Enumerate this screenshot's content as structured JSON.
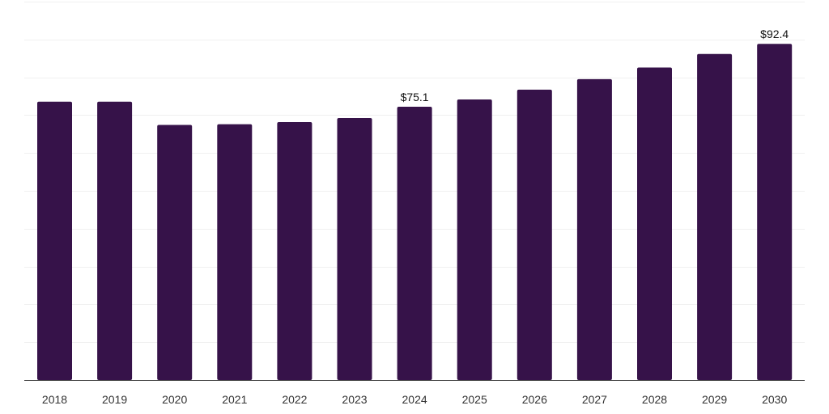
{
  "chart_data": {
    "type": "bar",
    "categories": [
      "2018",
      "2019",
      "2020",
      "2021",
      "2022",
      "2023",
      "2024",
      "2025",
      "2026",
      "2027",
      "2028",
      "2029",
      "2030"
    ],
    "values": [
      76.5,
      76.5,
      70.1,
      70.3,
      70.9,
      72.0,
      75.1,
      77.1,
      79.8,
      82.7,
      85.9,
      89.6,
      92.4
    ],
    "data_labels": [
      "",
      "",
      "",
      "",
      "",
      "",
      "$75.1",
      "",
      "",
      "",
      "",
      "",
      "$92.4"
    ],
    "ylim": [
      0,
      104
    ],
    "y_grid_step": 10.4,
    "grid": true,
    "legend": "none",
    "bar_color": "#361249",
    "title": "",
    "xlabel": "",
    "ylabel": ""
  }
}
